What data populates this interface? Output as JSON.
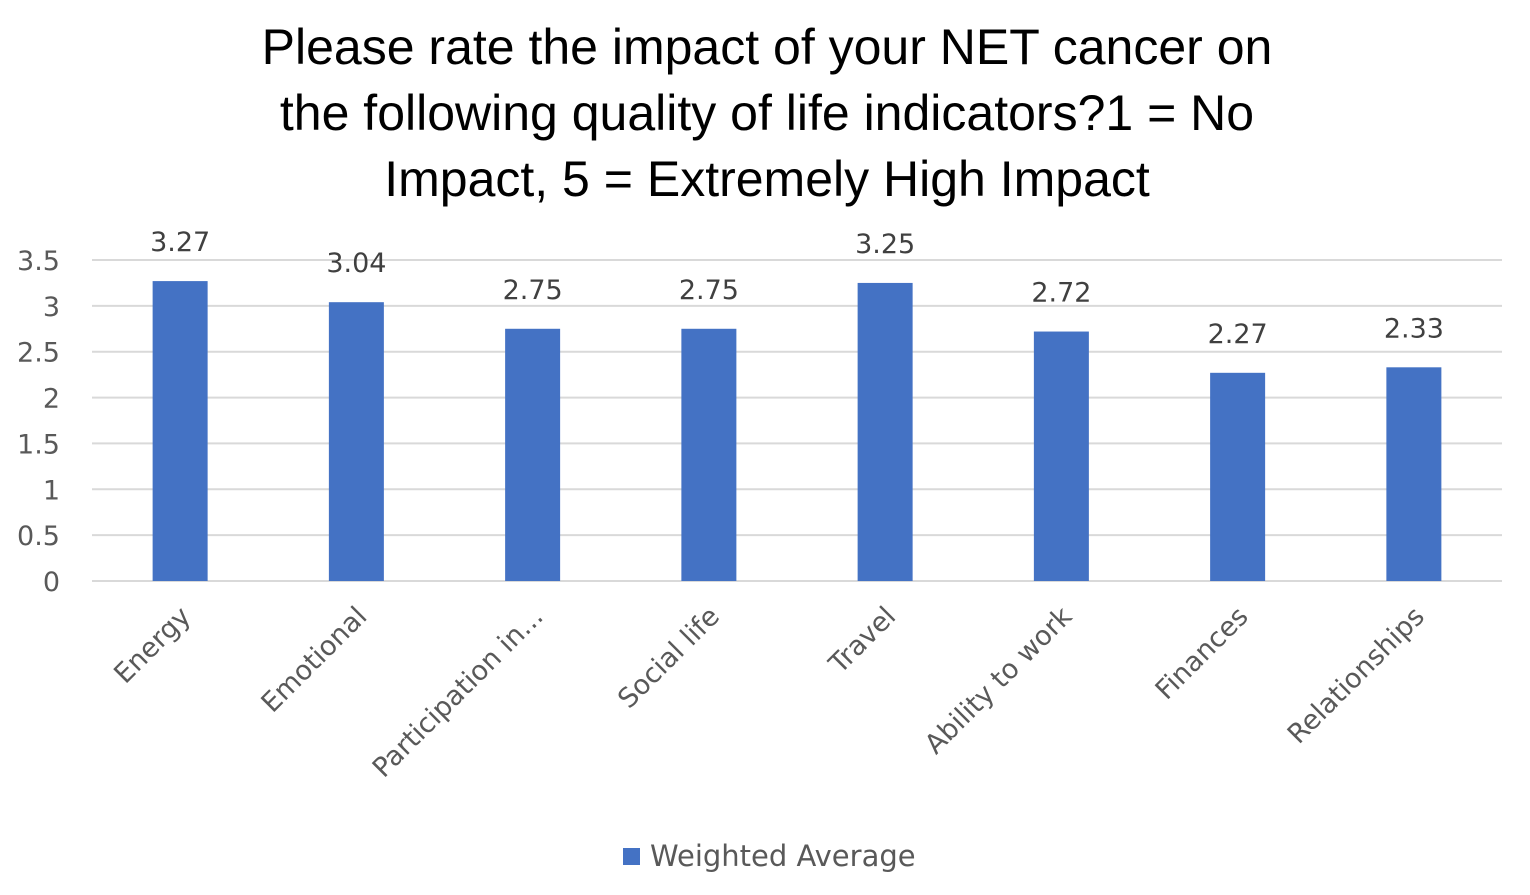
{
  "chart_data": {
    "type": "bar",
    "title_lines": [
      "Please rate the impact of your NET cancer on",
      "the following quality of life indicators?1 = No",
      "Impact,  5 = Extremely High Impact"
    ],
    "categories": [
      "Energy",
      "Emotional",
      "Participation in...",
      "Social life",
      "Travel",
      "Ability to work",
      "Finances",
      "Relationships"
    ],
    "series": [
      {
        "name": "Weighted Average",
        "values": [
          3.27,
          3.04,
          2.75,
          2.75,
          3.25,
          2.72,
          2.27,
          2.33
        ],
        "value_labels": [
          "3.27",
          "3.04",
          "2.75",
          "2.75",
          "3.25",
          "2.72",
          "2.27",
          "2.33"
        ],
        "color": "#4472C4"
      }
    ],
    "y_ticks": [
      0,
      0.5,
      1,
      1.5,
      2,
      2.5,
      3,
      3.5
    ],
    "y_tick_labels": [
      "0",
      "0.5",
      "1",
      "1.5",
      "2",
      "2.5",
      "3",
      "3.5"
    ],
    "ylim": [
      0,
      3.5
    ],
    "xlabel": "",
    "ylabel": "",
    "grid": true,
    "legend_position": "bottom",
    "gridline_color": "#D9D9D9"
  }
}
